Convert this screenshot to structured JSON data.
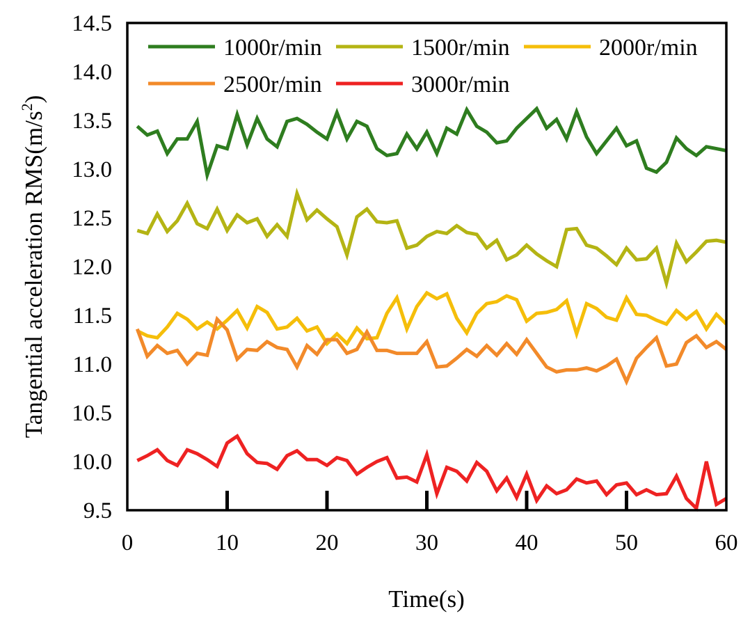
{
  "chart_data": {
    "type": "line",
    "title": "",
    "xlabel": "Time(s)",
    "ylabel_main": "Tangential acceleration RMS(m/s",
    "ylabel_sup": "2",
    "ylabel_end": ")",
    "xlim": [
      0,
      60
    ],
    "ylim": [
      9.5,
      14.5
    ],
    "xticks": [
      0,
      10,
      20,
      30,
      40,
      50,
      60
    ],
    "xtick_labels": [
      "0",
      "10",
      "20",
      "30",
      "40",
      "50",
      "60"
    ],
    "yticks": [
      9.5,
      10.0,
      10.5,
      11.0,
      11.5,
      12.0,
      12.5,
      13.0,
      13.5,
      14.0,
      14.5
    ],
    "ytick_labels": [
      "9.5",
      "10.0",
      "10.5",
      "11.0",
      "11.5",
      "12.0",
      "12.5",
      "13.0",
      "13.5",
      "14.0",
      "14.5"
    ],
    "grid": false,
    "legend_position": "top",
    "x": [
      1,
      2,
      3,
      4,
      5,
      6,
      7,
      8,
      9,
      10,
      11,
      12,
      13,
      14,
      15,
      16,
      17,
      18,
      19,
      20,
      21,
      22,
      23,
      24,
      25,
      26,
      27,
      28,
      29,
      30,
      31,
      32,
      33,
      34,
      35,
      36,
      37,
      38,
      39,
      40,
      41,
      42,
      43,
      44,
      45,
      46,
      47,
      48,
      49,
      50,
      51,
      52,
      53,
      54,
      55,
      56,
      57,
      58,
      59,
      60
    ],
    "series": [
      {
        "name": "1000r/min",
        "color": "#2e7d1f",
        "values": [
          13.44,
          13.35,
          13.39,
          13.16,
          13.31,
          13.31,
          13.49,
          12.94,
          13.24,
          13.21,
          13.56,
          13.25,
          13.52,
          13.31,
          13.23,
          13.49,
          13.52,
          13.46,
          13.38,
          13.31,
          13.58,
          13.31,
          13.49,
          13.44,
          13.21,
          13.14,
          13.16,
          13.36,
          13.21,
          13.38,
          13.16,
          13.42,
          13.36,
          13.61,
          13.44,
          13.38,
          13.27,
          13.29,
          13.42,
          13.52,
          13.62,
          13.42,
          13.51,
          13.31,
          13.59,
          13.33,
          13.16,
          13.29,
          13.42,
          13.24,
          13.29,
          13.01,
          12.97,
          13.07,
          13.32,
          13.21,
          13.14,
          13.23,
          13.21,
          13.19
        ]
      },
      {
        "name": "1500r/min",
        "color": "#b4b414",
        "values": [
          12.37,
          12.34,
          12.54,
          12.36,
          12.47,
          12.65,
          12.44,
          12.39,
          12.59,
          12.37,
          12.53,
          12.45,
          12.49,
          12.31,
          12.43,
          12.31,
          12.75,
          12.48,
          12.58,
          12.49,
          12.41,
          12.12,
          12.51,
          12.59,
          12.46,
          12.45,
          12.47,
          12.19,
          12.22,
          12.31,
          12.36,
          12.34,
          12.42,
          12.35,
          12.33,
          12.19,
          12.27,
          12.07,
          12.12,
          12.22,
          12.13,
          12.06,
          12.0,
          12.38,
          12.39,
          12.22,
          12.19,
          12.11,
          12.02,
          12.19,
          12.07,
          12.08,
          12.19,
          11.83,
          12.24,
          12.05,
          12.15,
          12.26,
          12.27,
          12.25
        ]
      },
      {
        "name": "2000r/min",
        "color": "#f5be0a",
        "values": [
          11.34,
          11.29,
          11.27,
          11.38,
          11.52,
          11.46,
          11.36,
          11.43,
          11.36,
          11.45,
          11.55,
          11.37,
          11.59,
          11.53,
          11.36,
          11.38,
          11.47,
          11.34,
          11.38,
          11.21,
          11.31,
          11.21,
          11.37,
          11.26,
          11.27,
          11.52,
          11.68,
          11.36,
          11.59,
          11.73,
          11.67,
          11.72,
          11.47,
          11.32,
          11.52,
          11.62,
          11.64,
          11.7,
          11.66,
          11.44,
          11.52,
          11.53,
          11.56,
          11.65,
          11.31,
          11.62,
          11.57,
          11.48,
          11.45,
          11.68,
          11.51,
          11.5,
          11.45,
          11.41,
          11.55,
          11.46,
          11.54,
          11.36,
          11.51,
          11.41
        ]
      },
      {
        "name": "2500r/min",
        "color": "#f28a2a",
        "values": [
          11.36,
          11.08,
          11.19,
          11.11,
          11.14,
          11.0,
          11.11,
          11.09,
          11.46,
          11.35,
          11.05,
          11.15,
          11.14,
          11.23,
          11.17,
          11.15,
          10.97,
          11.19,
          11.1,
          11.25,
          11.25,
          11.11,
          11.15,
          11.33,
          11.14,
          11.14,
          11.11,
          11.11,
          11.11,
          11.23,
          10.97,
          10.98,
          11.06,
          11.15,
          11.08,
          11.19,
          11.09,
          11.21,
          11.1,
          11.25,
          11.11,
          10.97,
          10.92,
          10.94,
          10.94,
          10.96,
          10.93,
          10.98,
          11.05,
          10.82,
          11.06,
          11.17,
          11.27,
          10.98,
          11.0,
          11.22,
          11.29,
          11.17,
          11.23,
          11.15
        ]
      },
      {
        "name": "3000r/min",
        "color": "#ee2222",
        "values": [
          10.01,
          10.06,
          10.12,
          10.01,
          9.96,
          10.12,
          10.08,
          10.02,
          9.95,
          10.19,
          10.26,
          10.08,
          9.99,
          9.98,
          9.92,
          10.06,
          10.11,
          10.02,
          10.02,
          9.96,
          10.04,
          10.01,
          9.87,
          9.94,
          10.0,
          10.04,
          9.83,
          9.84,
          9.79,
          10.07,
          9.67,
          9.94,
          9.9,
          9.8,
          9.99,
          9.9,
          9.7,
          9.83,
          9.63,
          9.87,
          9.6,
          9.75,
          9.67,
          9.71,
          9.82,
          9.78,
          9.8,
          9.66,
          9.76,
          9.78,
          9.66,
          9.71,
          9.66,
          9.67,
          9.85,
          9.62,
          9.52,
          10.0,
          9.56,
          9.62
        ]
      }
    ]
  }
}
